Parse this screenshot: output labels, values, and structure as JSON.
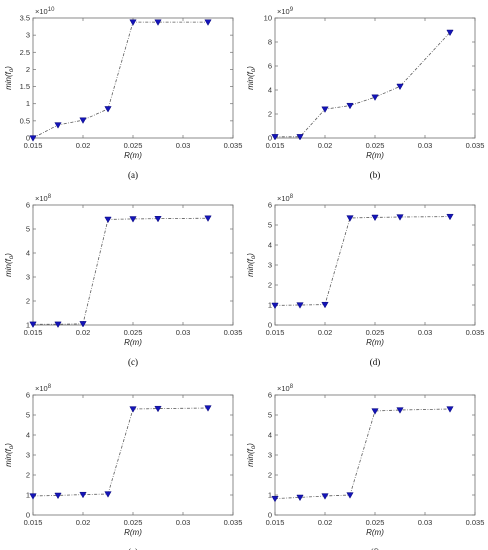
{
  "style": {
    "line_color": "#5a5a5a",
    "marker_color": "#1414b8",
    "marker_edge": "#0a0a7a"
  },
  "chart_data": [
    {
      "type": "line",
      "caption": "(a)",
      "xlabel": "R(m)",
      "ylabel": "min(f",
      "ylabel_sub": "o",
      "ylabel_tail": ")",
      "xlim": [
        0.015,
        0.035
      ],
      "ylim": [
        0,
        3.5
      ],
      "xticks": [
        0.015,
        0.02,
        0.025,
        0.03,
        0.035
      ],
      "xticklabels": [
        "0.015",
        "0.02",
        "0.025",
        "0.03",
        "0.035"
      ],
      "yticks": [
        0,
        0.5,
        1,
        1.5,
        2,
        2.5,
        3,
        3.5
      ],
      "yticklabels": [
        "0",
        "0.5",
        "1",
        "1.5",
        "2",
        "2.5",
        "3",
        "3.5"
      ],
      "exponent_prefix": "×10",
      "exponent_power": "10",
      "series": [
        {
          "x": [
            0.015,
            0.0175,
            0.02,
            0.0225,
            0.025,
            0.0275,
            0.0325
          ],
          "y": [
            0.0,
            0.38,
            0.52,
            0.85,
            3.38,
            3.38,
            3.38
          ]
        }
      ]
    },
    {
      "type": "line",
      "caption": "(b)",
      "xlabel": "R(m)",
      "ylabel": "min(f",
      "ylabel_sub": "o",
      "ylabel_tail": ")",
      "xlim": [
        0.015,
        0.035
      ],
      "ylim": [
        0,
        10
      ],
      "xticks": [
        0.015,
        0.02,
        0.025,
        0.03,
        0.035
      ],
      "xticklabels": [
        "0.015",
        "0.02",
        "0.025",
        "0.03",
        "0.035"
      ],
      "yticks": [
        0,
        2,
        4,
        6,
        8,
        10
      ],
      "yticklabels": [
        "0",
        "2",
        "4",
        "6",
        "8",
        "10"
      ],
      "exponent_prefix": "×10",
      "exponent_power": "9",
      "series": [
        {
          "x": [
            0.015,
            0.0175,
            0.02,
            0.0225,
            0.025,
            0.0275,
            0.0325
          ],
          "y": [
            0.1,
            0.1,
            2.4,
            2.7,
            3.4,
            4.3,
            8.8
          ]
        }
      ]
    },
    {
      "type": "line",
      "caption": "(c)",
      "xlabel": "R(m)",
      "ylabel": "min(f",
      "ylabel_sub": "o",
      "ylabel_tail": ")",
      "xlim": [
        0.015,
        0.035
      ],
      "ylim": [
        1,
        6
      ],
      "xticks": [
        0.015,
        0.02,
        0.025,
        0.03,
        0.035
      ],
      "xticklabels": [
        "0.015",
        "0.02",
        "0.025",
        "0.03",
        "0.035"
      ],
      "yticks": [
        1,
        2,
        3,
        4,
        5,
        6
      ],
      "yticklabels": [
        "1",
        "2",
        "3",
        "4",
        "5",
        "6"
      ],
      "exponent_prefix": "×10",
      "exponent_power": "8",
      "series": [
        {
          "x": [
            0.015,
            0.0175,
            0.02,
            0.0225,
            0.025,
            0.0275,
            0.0325
          ],
          "y": [
            1.03,
            1.03,
            1.05,
            5.4,
            5.42,
            5.43,
            5.45
          ]
        }
      ]
    },
    {
      "type": "line",
      "caption": "(d)",
      "xlabel": "R(m)",
      "ylabel": "min(f",
      "ylabel_sub": "o",
      "ylabel_tail": ")",
      "xlim": [
        0.015,
        0.035
      ],
      "ylim": [
        0,
        6
      ],
      "xticks": [
        0.015,
        0.02,
        0.025,
        0.03,
        0.035
      ],
      "xticklabels": [
        "0.015",
        "0.02",
        "0.025",
        "0.03",
        "0.035"
      ],
      "yticks": [
        0,
        1,
        2,
        3,
        4,
        5,
        6
      ],
      "yticklabels": [
        "0",
        "1",
        "2",
        "3",
        "4",
        "5",
        "6"
      ],
      "exponent_prefix": "×10",
      "exponent_power": "8",
      "series": [
        {
          "x": [
            0.015,
            0.0175,
            0.02,
            0.0225,
            0.025,
            0.0275,
            0.0325
          ],
          "y": [
            0.98,
            1.0,
            1.02,
            5.35,
            5.38,
            5.4,
            5.42
          ]
        }
      ]
    },
    {
      "type": "line",
      "caption": "(e)",
      "xlabel": "R(m)",
      "ylabel": "min(f",
      "ylabel_sub": "o",
      "ylabel_tail": ")",
      "xlim": [
        0.015,
        0.035
      ],
      "ylim": [
        0,
        6
      ],
      "xticks": [
        0.015,
        0.02,
        0.025,
        0.03,
        0.035
      ],
      "xticklabels": [
        "0.015",
        "0.02",
        "0.025",
        "0.03",
        "0.035"
      ],
      "yticks": [
        0,
        1,
        2,
        3,
        4,
        5,
        6
      ],
      "yticklabels": [
        "0",
        "1",
        "2",
        "3",
        "4",
        "5",
        "6"
      ],
      "exponent_prefix": "×10",
      "exponent_power": "8",
      "series": [
        {
          "x": [
            0.015,
            0.0175,
            0.02,
            0.0225,
            0.025,
            0.0275,
            0.0325
          ],
          "y": [
            0.95,
            0.98,
            1.02,
            1.05,
            5.3,
            5.32,
            5.35
          ]
        }
      ]
    },
    {
      "type": "line",
      "caption": "(f)",
      "xlabel": "R(m)",
      "ylabel": "min(f",
      "ylabel_sub": "o",
      "ylabel_tail": ")",
      "xlim": [
        0.015,
        0.035
      ],
      "ylim": [
        0,
        6
      ],
      "xticks": [
        0.015,
        0.02,
        0.025,
        0.03,
        0.035
      ],
      "xticklabels": [
        "0.015",
        "0.02",
        "0.025",
        "0.03",
        "0.035"
      ],
      "yticks": [
        0,
        1,
        2,
        3,
        4,
        5,
        6
      ],
      "yticklabels": [
        "0",
        "1",
        "2",
        "3",
        "4",
        "5",
        "6"
      ],
      "exponent_prefix": "×10",
      "exponent_power": "8",
      "series": [
        {
          "x": [
            0.015,
            0.0175,
            0.02,
            0.0225,
            0.025,
            0.0275,
            0.0325
          ],
          "y": [
            0.82,
            0.88,
            0.95,
            1.0,
            5.2,
            5.25,
            5.3
          ]
        }
      ]
    }
  ]
}
